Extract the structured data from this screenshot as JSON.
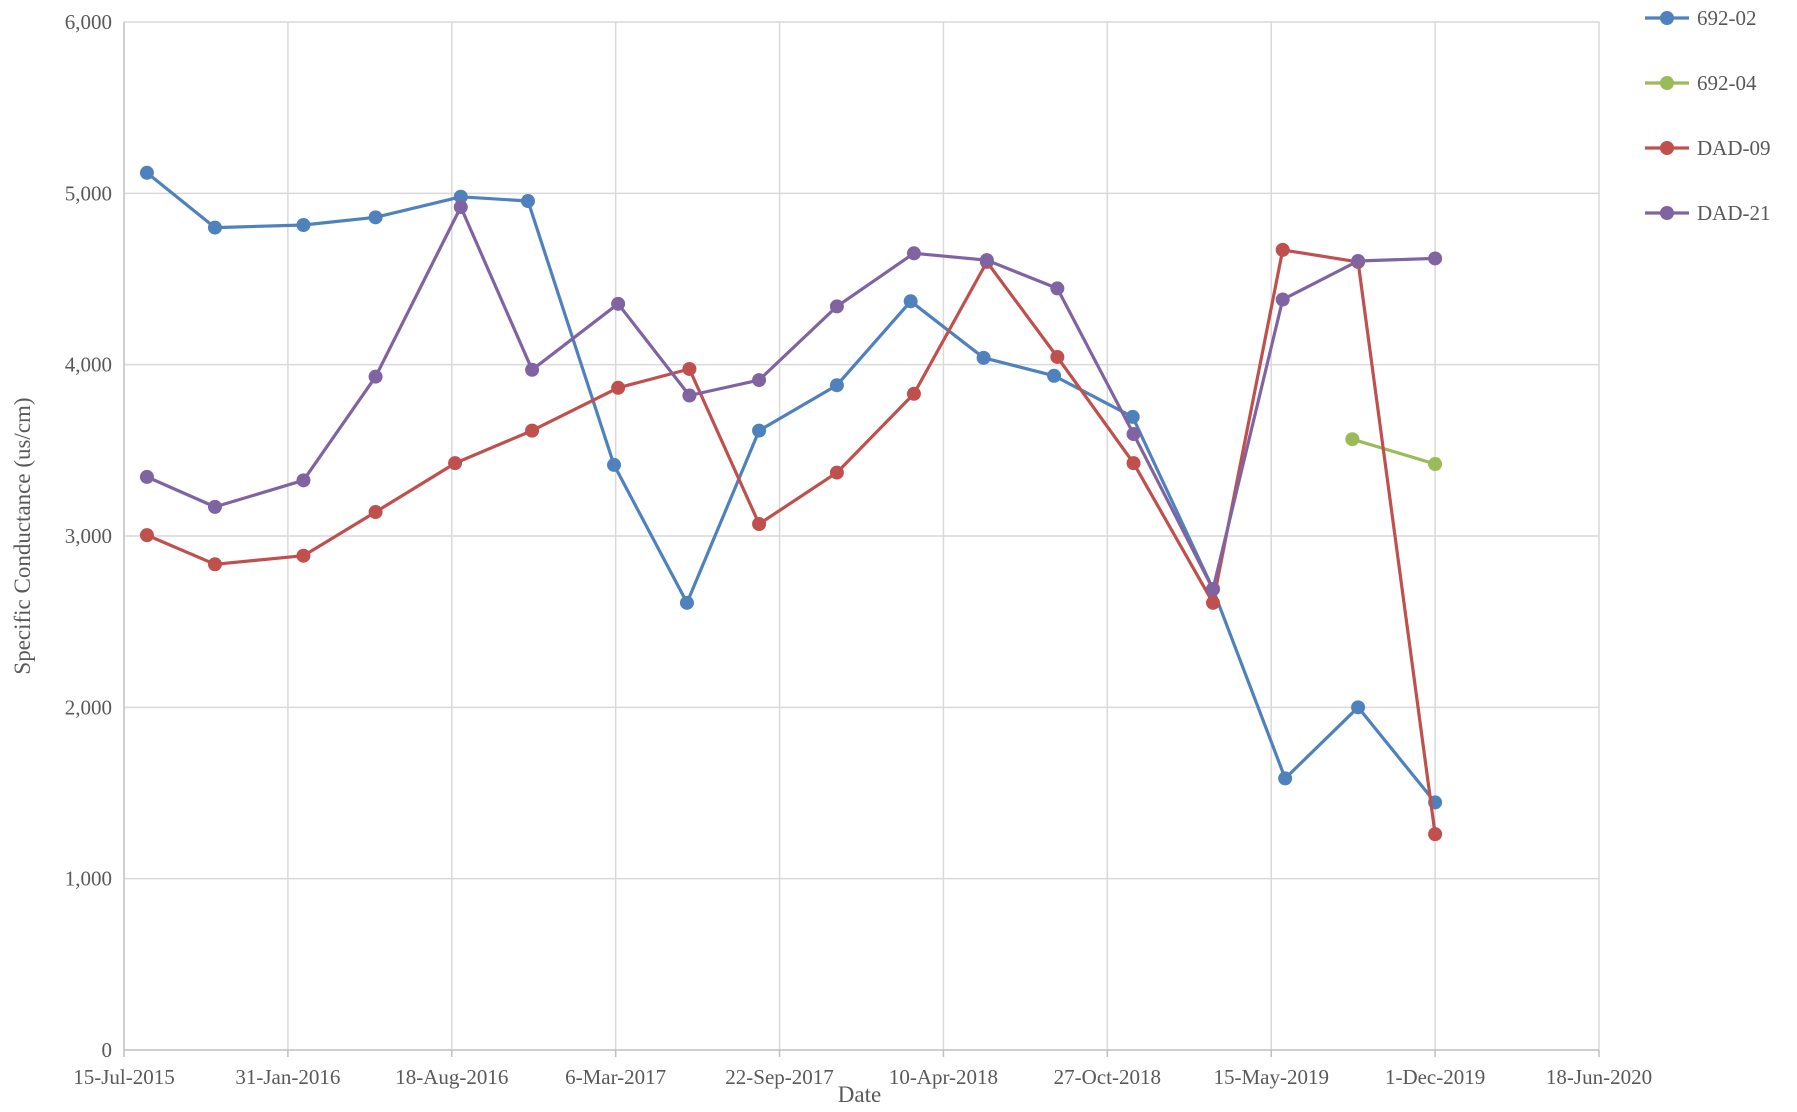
{
  "chart_data": {
    "type": "line",
    "title": "",
    "xlabel": "Date",
    "ylabel": "Specific Conductance (us/cm)",
    "x_axis_type": "date",
    "xlim": [
      "2015-07-15",
      "2020-06-18"
    ],
    "ylim": [
      0,
      6000
    ],
    "x_ticks": [
      {
        "date": "2015-07-15",
        "label": "15-Jul-2015"
      },
      {
        "date": "2016-01-31",
        "label": "31-Jan-2016"
      },
      {
        "date": "2016-08-18",
        "label": "18-Aug-2016"
      },
      {
        "date": "2017-03-06",
        "label": "6-Mar-2017"
      },
      {
        "date": "2017-09-22",
        "label": "22-Sep-2017"
      },
      {
        "date": "2018-04-10",
        "label": "10-Apr-2018"
      },
      {
        "date": "2018-10-27",
        "label": "27-Oct-2018"
      },
      {
        "date": "2019-05-15",
        "label": "15-May-2019"
      },
      {
        "date": "2019-12-01",
        "label": "1-Dec-2019"
      },
      {
        "date": "2020-06-18",
        "label": "18-Jun-2020"
      }
    ],
    "y_ticks": [
      {
        "value": 0,
        "label": "0"
      },
      {
        "value": 1000,
        "label": "1,000"
      },
      {
        "value": 2000,
        "label": "2,000"
      },
      {
        "value": 3000,
        "label": "3,000"
      },
      {
        "value": 4000,
        "label": "4,000"
      },
      {
        "value": 5000,
        "label": "5,000"
      },
      {
        "value": 6000,
        "label": "6,000"
      }
    ],
    "grid": true,
    "legend_position": "right",
    "series": [
      {
        "name": "692-02",
        "color": "#4F81BD",
        "points": [
          {
            "x": "2015-08-12",
            "y": 5120
          },
          {
            "x": "2015-11-03",
            "y": 4800
          },
          {
            "x": "2016-02-19",
            "y": 4815
          },
          {
            "x": "2016-05-17",
            "y": 4860
          },
          {
            "x": "2016-08-29",
            "y": 4980
          },
          {
            "x": "2016-11-19",
            "y": 4955
          },
          {
            "x": "2017-03-04",
            "y": 3415
          },
          {
            "x": "2017-06-01",
            "y": 2610
          },
          {
            "x": "2017-08-28",
            "y": 3615
          },
          {
            "x": "2017-12-01",
            "y": 3880
          },
          {
            "x": "2018-03-01",
            "y": 4370
          },
          {
            "x": "2018-05-29",
            "y": 4040
          },
          {
            "x": "2018-08-23",
            "y": 3935
          },
          {
            "x": "2018-11-27",
            "y": 3695
          },
          {
            "x": "2019-03-05",
            "y": 2690
          },
          {
            "x": "2019-06-01",
            "y": 1585
          },
          {
            "x": "2019-08-29",
            "y": 2000
          },
          {
            "x": "2019-12-01",
            "y": 1445
          }
        ]
      },
      {
        "name": "692-04",
        "color": "#9BBB59",
        "points": [
          {
            "x": "2019-08-22",
            "y": 3565
          },
          {
            "x": "2019-12-01",
            "y": 3420
          }
        ]
      },
      {
        "name": "DAD-09",
        "color": "#C0504D",
        "points": [
          {
            "x": "2015-08-12",
            "y": 3005
          },
          {
            "x": "2015-11-03",
            "y": 2835
          },
          {
            "x": "2016-02-19",
            "y": 2885
          },
          {
            "x": "2016-05-17",
            "y": 3140
          },
          {
            "x": "2016-08-22",
            "y": 3425
          },
          {
            "x": "2016-11-24",
            "y": 3615
          },
          {
            "x": "2017-03-09",
            "y": 3865
          },
          {
            "x": "2017-06-04",
            "y": 3975
          },
          {
            "x": "2017-08-28",
            "y": 3070
          },
          {
            "x": "2017-12-01",
            "y": 3370
          },
          {
            "x": "2018-03-05",
            "y": 3830
          },
          {
            "x": "2018-06-02",
            "y": 4600
          },
          {
            "x": "2018-08-27",
            "y": 4045
          },
          {
            "x": "2018-11-28",
            "y": 3425
          },
          {
            "x": "2019-03-05",
            "y": 2610
          },
          {
            "x": "2019-05-29",
            "y": 4670
          },
          {
            "x": "2019-08-29",
            "y": 4600
          },
          {
            "x": "2019-12-01",
            "y": 1260
          }
        ]
      },
      {
        "name": "DAD-21",
        "color": "#8064A2",
        "points": [
          {
            "x": "2015-08-12",
            "y": 3345
          },
          {
            "x": "2015-11-03",
            "y": 3170
          },
          {
            "x": "2016-02-19",
            "y": 3325
          },
          {
            "x": "2016-05-17",
            "y": 3930
          },
          {
            "x": "2016-08-29",
            "y": 4920
          },
          {
            "x": "2016-11-24",
            "y": 3970
          },
          {
            "x": "2017-03-09",
            "y": 4355
          },
          {
            "x": "2017-06-04",
            "y": 3820
          },
          {
            "x": "2017-08-28",
            "y": 3910
          },
          {
            "x": "2017-12-01",
            "y": 4340
          },
          {
            "x": "2018-03-05",
            "y": 4650
          },
          {
            "x": "2018-06-02",
            "y": 4610
          },
          {
            "x": "2018-08-27",
            "y": 4445
          },
          {
            "x": "2018-11-28",
            "y": 3595
          },
          {
            "x": "2019-03-05",
            "y": 2690
          },
          {
            "x": "2019-05-29",
            "y": 4380
          },
          {
            "x": "2019-08-29",
            "y": 4605
          },
          {
            "x": "2019-12-01",
            "y": 4620
          }
        ]
      }
    ]
  }
}
